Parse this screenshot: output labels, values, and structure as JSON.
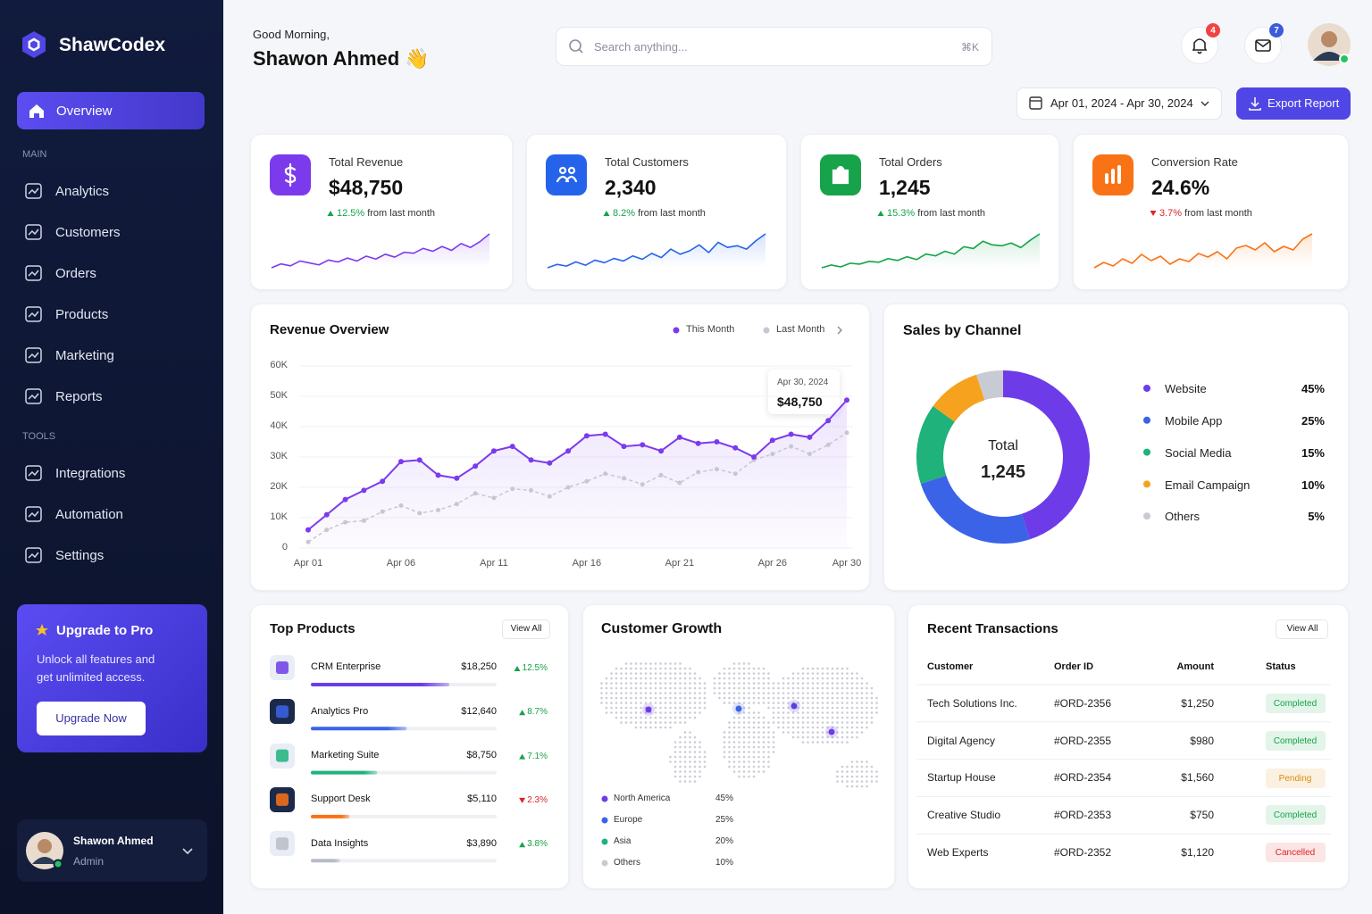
{
  "sidebar": {
    "brand": "ShawCodex",
    "active": "Overview",
    "sections": [
      {
        "title": "MAIN",
        "items": [
          "Analytics",
          "Customers",
          "Orders",
          "Products",
          "Marketing",
          "Reports"
        ]
      },
      {
        "title": "TOOLS",
        "items": [
          "Integrations",
          "Automation",
          "Settings"
        ]
      }
    ],
    "upgrade": {
      "title": "Upgrade to Pro",
      "text": "Unlock all features and get unlimited access.",
      "button": "Upgrade Now"
    },
    "user": {
      "name": "Shawon Ahmed",
      "role": "Admin"
    }
  },
  "header": {
    "greeting": "Good Morning,",
    "name": "Shawon Ahmed 👋",
    "search": "Search anything...",
    "shortcut": "⌘K",
    "notifications": 4,
    "messages": 7,
    "date_range": "Apr 01, 2024 - Apr 30, 2024",
    "export": "Export Report"
  },
  "kpis": [
    {
      "label": "Total Revenue",
      "value": "$48,750",
      "change": "12.5%",
      "direction": "up",
      "note": "from last month",
      "color": "#7c3aed",
      "sparkline": [
        20,
        24,
        22,
        27,
        25,
        23,
        28,
        26,
        30,
        27,
        32,
        29,
        34,
        31,
        36,
        35,
        40,
        37,
        42,
        38,
        45,
        41,
        47,
        55
      ]
    },
    {
      "label": "Total Customers",
      "value": "2,340",
      "change": "8.2%",
      "direction": "up",
      "note": "from last month",
      "color": "#2563eb",
      "sparkline": [
        18,
        22,
        20,
        25,
        21,
        27,
        24,
        29,
        26,
        32,
        28,
        35,
        30,
        40,
        34,
        38,
        45,
        36,
        48,
        42,
        44,
        40,
        50,
        58
      ]
    },
    {
      "label": "Total Orders",
      "value": "1,245",
      "change": "15.3%",
      "direction": "up",
      "note": "from last month",
      "color": "#16a34a",
      "sparkline": [
        15,
        18,
        16,
        20,
        19,
        22,
        21,
        25,
        23,
        27,
        24,
        30,
        28,
        33,
        30,
        38,
        36,
        44,
        40,
        39,
        42,
        37,
        45,
        52
      ]
    },
    {
      "label": "Conversion Rate",
      "value": "24.6%",
      "change": "3.7%",
      "direction": "down",
      "note": "from last month",
      "color": "#f97316",
      "sparkline": [
        20,
        26,
        22,
        30,
        25,
        35,
        28,
        33,
        24,
        30,
        27,
        36,
        32,
        38,
        30,
        42,
        45,
        40,
        48,
        38,
        44,
        40,
        52,
        58
      ]
    }
  ],
  "revenue_chart": {
    "type": "line",
    "title": "Revenue Overview",
    "categories": [
      "Apr 01",
      null,
      null,
      null,
      null,
      "Apr 06",
      null,
      null,
      null,
      null,
      "Apr 11",
      null,
      null,
      null,
      null,
      "Apr 16",
      null,
      null,
      null,
      null,
      "Apr 21",
      null,
      null,
      null,
      null,
      "Apr 26",
      null,
      null,
      null,
      "Apr 30"
    ],
    "series": [
      {
        "name": "This Month",
        "color": "#7c3aed",
        "values": [
          6000,
          11000,
          16000,
          19000,
          22000,
          28500,
          29000,
          24000,
          23000,
          27000,
          32000,
          33500,
          29000,
          28000,
          32000,
          37000,
          37500,
          33500,
          34000,
          32000,
          36500,
          34500,
          35000,
          33000,
          30000,
          35500,
          37500,
          36500,
          42000,
          48750
        ]
      },
      {
        "name": "Last Month",
        "color": "#c5c8d2",
        "values": [
          2000,
          6000,
          8500,
          9000,
          12000,
          14000,
          11500,
          12500,
          14500,
          18000,
          16500,
          19500,
          19000,
          17000,
          20000,
          22000,
          24500,
          23000,
          21000,
          24000,
          21500,
          25000,
          26000,
          24500,
          29000,
          31000,
          33500,
          31000,
          34000,
          38000
        ]
      }
    ],
    "ylim": [
      0,
      60000
    ],
    "yticks": [
      0,
      {
        "value": 10000,
        "label": "10K"
      },
      {
        "value": 20000,
        "label": "20K"
      },
      {
        "value": 30000,
        "label": "30K"
      },
      {
        "value": 40000,
        "label": "40K"
      },
      {
        "value": 50000,
        "label": "50K"
      },
      {
        "value": 60000,
        "label": "60K"
      }
    ],
    "grid": true,
    "tooltip": {
      "date": "Apr 30, 2024",
      "value": "$48,750"
    }
  },
  "channel_chart": {
    "type": "pie",
    "title": "Sales by Channel",
    "center_label": "Total",
    "center_value": "1,245",
    "categories": [
      "Website",
      "Mobile App",
      "Social Media",
      "Email Campaign",
      "Others"
    ],
    "values": [
      45,
      25,
      15,
      10,
      5
    ],
    "value_labels": [
      "45%",
      "25%",
      "15%",
      "10%",
      "5%"
    ],
    "colors": [
      "#6d3ce8",
      "#3b63e8",
      "#1fb27a",
      "#f6a21e",
      "#c8cbd3"
    ]
  },
  "products": {
    "title": "Top Products",
    "action": "View All",
    "names": [
      "CRM Enterprise",
      "Analytics Pro",
      "Marketing Suite",
      "Support Desk",
      "Data Insights"
    ],
    "values": [
      18250,
      12640,
      8750,
      5110,
      3890
    ],
    "value_labels": [
      "$18,250",
      "$12,640",
      "$8,750",
      "$5,110",
      "$3,890"
    ],
    "changes": [
      "12.5%",
      "8.7%",
      "7.1%",
      "2.3%",
      "3.8%"
    ],
    "directions": [
      "up",
      "up",
      "up",
      "down",
      "up"
    ],
    "colors": [
      "#6d3ce8",
      "#3b63e8",
      "#1fb27a",
      "#f97316",
      "#b8bcc8"
    ]
  },
  "growth": {
    "title": "Customer Growth",
    "categories": [
      "North America",
      "Europe",
      "Asia",
      "Others"
    ],
    "values": [
      45,
      25,
      20,
      10
    ],
    "value_labels": [
      "45%",
      "25%",
      "20%",
      "10%"
    ],
    "colors": [
      "#6d3ce8",
      "#3b63e8",
      "#1fb27a",
      "#c8cbd3"
    ]
  },
  "transactions": {
    "title": "Recent Transactions",
    "action": "View All",
    "columns": [
      "Customer",
      "Order ID",
      "Amount",
      "Status"
    ],
    "rows": [
      {
        "customer": "Tech Solutions Inc.",
        "order_id": "#ORD-2356",
        "amount": "$1,250",
        "status": "Completed",
        "status_color": "#16a34a"
      },
      {
        "customer": "Digital Agency",
        "order_id": "#ORD-2355",
        "amount": "$980",
        "status": "Completed",
        "status_color": "#16a34a"
      },
      {
        "customer": "Startup House",
        "order_id": "#ORD-2354",
        "amount": "$1,560",
        "status": "Pending",
        "status_color": "#e08a0b"
      },
      {
        "customer": "Creative Studio",
        "order_id": "#ORD-2353",
        "amount": "$750",
        "status": "Completed",
        "status_color": "#16a34a"
      },
      {
        "customer": "Web Experts",
        "order_id": "#ORD-2352",
        "amount": "$1,120",
        "status": "Cancelled",
        "status_color": "#dc2626"
      }
    ]
  }
}
